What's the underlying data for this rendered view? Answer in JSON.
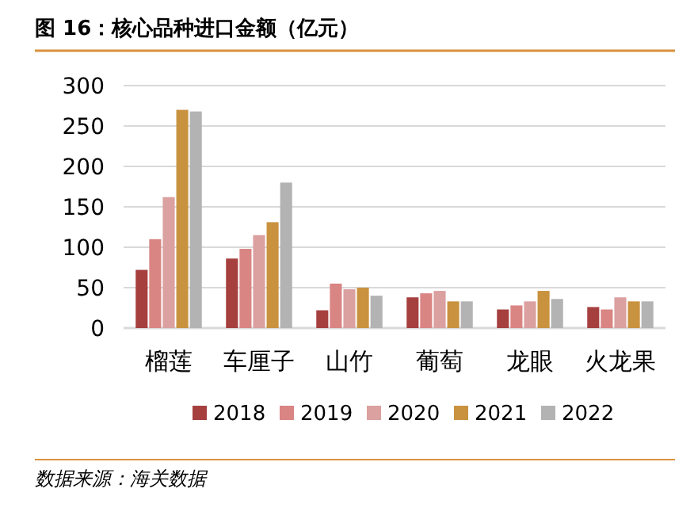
{
  "chart_data": {
    "type": "bar",
    "title": "图 16：核心品种进口金额（亿元）",
    "categories": [
      "榴莲",
      "车厘子",
      "山竹",
      "葡萄",
      "龙眼",
      "火龙果"
    ],
    "series": [
      {
        "name": "2018",
        "color": "#a5403f",
        "values": [
          72,
          86,
          22,
          38,
          23,
          26
        ]
      },
      {
        "name": "2019",
        "color": "#d98583",
        "values": [
          110,
          98,
          55,
          43,
          28,
          23
        ]
      },
      {
        "name": "2020",
        "color": "#dba0a0",
        "values": [
          162,
          115,
          48,
          46,
          33,
          38
        ]
      },
      {
        "name": "2021",
        "color": "#c9923f",
        "values": [
          270,
          131,
          50,
          33,
          46,
          33
        ]
      },
      {
        "name": "2022",
        "color": "#b3b3b3",
        "values": [
          268,
          180,
          40,
          33,
          36,
          33
        ]
      }
    ],
    "ylim": [
      0,
      300
    ],
    "yticks": [
      0,
      50,
      100,
      150,
      200,
      250,
      300
    ],
    "grid": "y",
    "legend": "bottom",
    "annotations": [
      "数据来源：海关数据"
    ]
  }
}
